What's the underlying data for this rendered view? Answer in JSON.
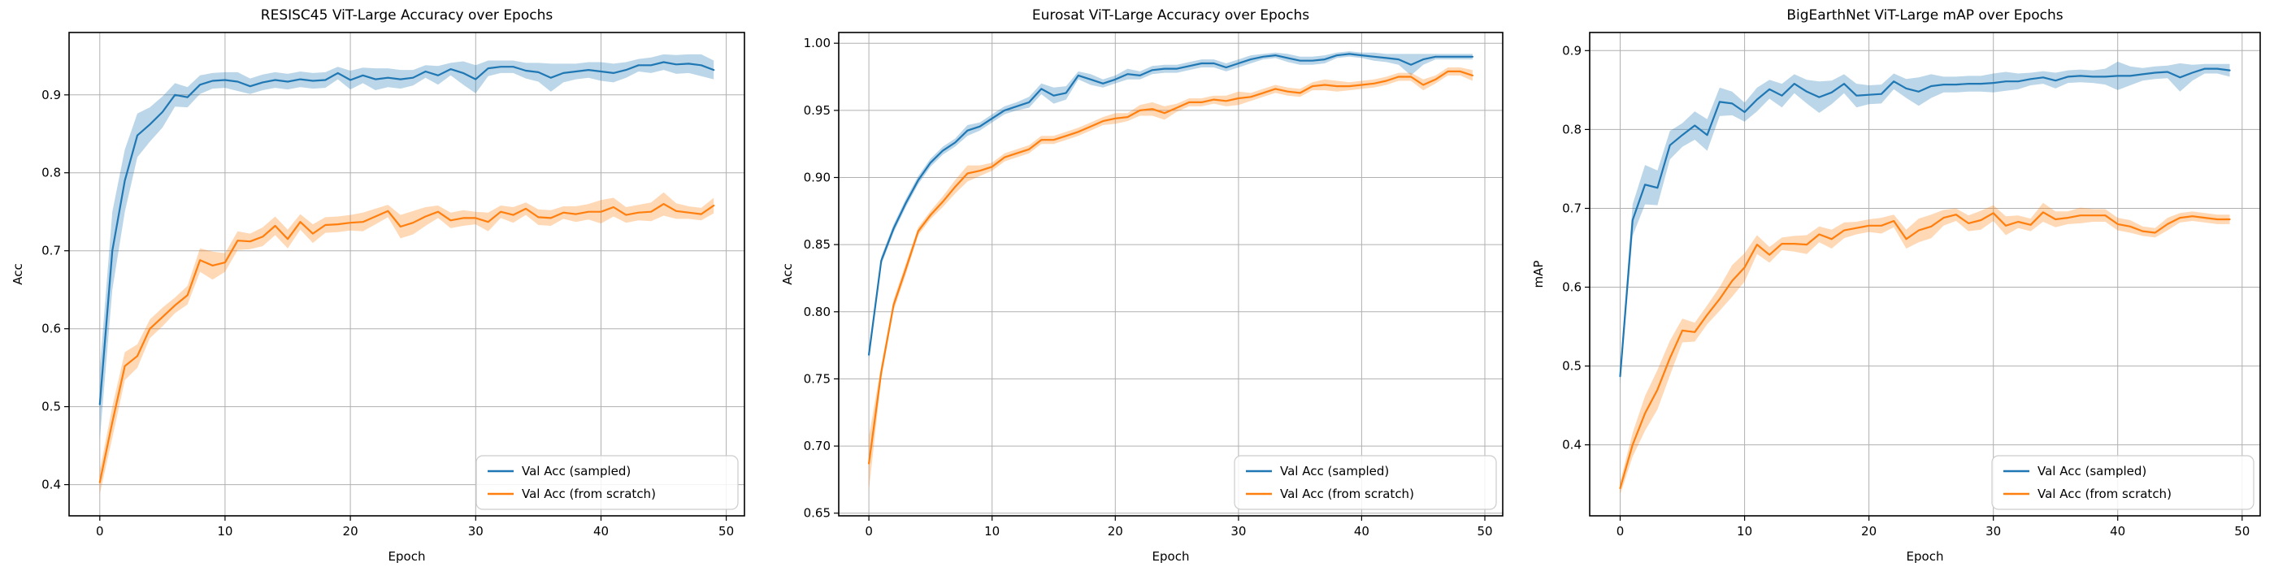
{
  "chart_data": [
    {
      "type": "line",
      "title": "RESISC45 ViT-Large Accuracy  over Epochs",
      "xlabel": "Epoch",
      "ylabel": "Acc",
      "grid": true,
      "legend_position": "lower right",
      "xlim": [
        -2.45,
        51.45
      ],
      "ylim": [
        0.36,
        0.98
      ],
      "xticks": [
        0,
        10,
        20,
        30,
        40,
        50
      ],
      "xtick_labels": [
        "0",
        "10",
        "20",
        "30",
        "40",
        "50"
      ],
      "yticks": [
        0.4,
        0.5,
        0.6,
        0.7,
        0.8,
        0.9
      ],
      "ytick_labels": [
        "0.4",
        "0.5",
        "0.6",
        "0.7",
        "0.8",
        "0.9"
      ],
      "x": [
        0,
        1,
        2,
        3,
        4,
        5,
        6,
        7,
        8,
        9,
        10,
        11,
        12,
        13,
        14,
        15,
        16,
        17,
        18,
        19,
        20,
        21,
        22,
        23,
        24,
        25,
        26,
        27,
        28,
        29,
        30,
        31,
        32,
        33,
        34,
        35,
        36,
        37,
        38,
        39,
        40,
        41,
        42,
        43,
        44,
        45,
        46,
        47,
        48,
        49
      ],
      "series": [
        {
          "name": "Val Acc (sampled)",
          "color": "#1f77b4",
          "values": [
            0.503,
            0.7,
            0.79,
            0.848,
            0.862,
            0.878,
            0.9,
            0.897,
            0.913,
            0.918,
            0.919,
            0.917,
            0.911,
            0.916,
            0.919,
            0.917,
            0.92,
            0.918,
            0.919,
            0.928,
            0.919,
            0.925,
            0.92,
            0.922,
            0.92,
            0.922,
            0.93,
            0.925,
            0.933,
            0.928,
            0.92,
            0.934,
            0.936,
            0.936,
            0.931,
            0.929,
            0.922,
            0.928,
            0.93,
            0.932,
            0.93,
            0.928,
            0.932,
            0.938,
            0.938,
            0.942,
            0.939,
            0.94,
            0.938,
            0.932
          ],
          "band": [
            0.045,
            0.05,
            0.04,
            0.028,
            0.022,
            0.02,
            0.015,
            0.013,
            0.012,
            0.01,
            0.01,
            0.012,
            0.01,
            0.01,
            0.01,
            0.01,
            0.01,
            0.01,
            0.01,
            0.008,
            0.012,
            0.01,
            0.014,
            0.012,
            0.012,
            0.01,
            0.008,
            0.012,
            0.008,
            0.015,
            0.018,
            0.01,
            0.008,
            0.008,
            0.01,
            0.012,
            0.018,
            0.012,
            0.01,
            0.01,
            0.012,
            0.012,
            0.01,
            0.008,
            0.01,
            0.01,
            0.012,
            0.012,
            0.014,
            0.012
          ]
        },
        {
          "name": "Val Acc (from scratch)",
          "color": "#ff7f0e",
          "values": [
            0.403,
            0.48,
            0.552,
            0.565,
            0.6,
            0.615,
            0.63,
            0.643,
            0.688,
            0.681,
            0.685,
            0.713,
            0.712,
            0.718,
            0.732,
            0.715,
            0.737,
            0.722,
            0.733,
            0.734,
            0.736,
            0.737,
            0.744,
            0.751,
            0.731,
            0.736,
            0.744,
            0.75,
            0.739,
            0.742,
            0.742,
            0.737,
            0.75,
            0.746,
            0.754,
            0.743,
            0.742,
            0.749,
            0.747,
            0.75,
            0.75,
            0.756,
            0.746,
            0.749,
            0.75,
            0.76,
            0.751,
            0.749,
            0.747,
            0.758
          ],
          "band": [
            0.015,
            0.02,
            0.018,
            0.015,
            0.012,
            0.012,
            0.01,
            0.012,
            0.015,
            0.018,
            0.012,
            0.012,
            0.01,
            0.012,
            0.012,
            0.012,
            0.01,
            0.012,
            0.01,
            0.01,
            0.01,
            0.012,
            0.01,
            0.008,
            0.015,
            0.015,
            0.012,
            0.008,
            0.01,
            0.01,
            0.008,
            0.012,
            0.008,
            0.01,
            0.008,
            0.01,
            0.01,
            0.008,
            0.01,
            0.01,
            0.015,
            0.012,
            0.01,
            0.01,
            0.012,
            0.015,
            0.01,
            0.008,
            0.008,
            0.01
          ]
        }
      ]
    },
    {
      "type": "line",
      "title": "Eurosat ViT-Large Accuracy over Epochs",
      "xlabel": "Epoch",
      "ylabel": "Acc",
      "grid": true,
      "legend_position": "lower right",
      "xlim": [
        -2.45,
        51.45
      ],
      "ylim": [
        0.648,
        1.008
      ],
      "xticks": [
        0,
        10,
        20,
        30,
        40,
        50
      ],
      "xtick_labels": [
        "0",
        "10",
        "20",
        "30",
        "40",
        "50"
      ],
      "yticks": [
        0.65,
        0.7,
        0.75,
        0.8,
        0.85,
        0.9,
        0.95,
        1.0
      ],
      "ytick_labels": [
        "0.65",
        "0.70",
        "0.75",
        "0.80",
        "0.85",
        "0.90",
        "0.95",
        "1.00"
      ],
      "x": [
        0,
        1,
        2,
        3,
        4,
        5,
        6,
        7,
        8,
        9,
        10,
        11,
        12,
        13,
        14,
        15,
        16,
        17,
        18,
        19,
        20,
        21,
        22,
        23,
        24,
        25,
        26,
        27,
        28,
        29,
        30,
        31,
        32,
        33,
        34,
        35,
        36,
        37,
        38,
        39,
        40,
        41,
        42,
        43,
        44,
        45,
        46,
        47,
        48,
        49
      ],
      "series": [
        {
          "name": "Val Acc (sampled)",
          "color": "#1f77b4",
          "values": [
            0.768,
            0.838,
            0.862,
            0.881,
            0.898,
            0.911,
            0.92,
            0.926,
            0.935,
            0.938,
            0.944,
            0.95,
            0.953,
            0.956,
            0.966,
            0.961,
            0.963,
            0.976,
            0.973,
            0.97,
            0.973,
            0.977,
            0.976,
            0.98,
            0.981,
            0.981,
            0.983,
            0.985,
            0.985,
            0.982,
            0.985,
            0.988,
            0.99,
            0.991,
            0.989,
            0.987,
            0.987,
            0.988,
            0.991,
            0.992,
            0.991,
            0.99,
            0.989,
            0.988,
            0.984,
            0.988,
            0.99,
            0.99,
            0.99,
            0.99
          ],
          "band": [
            0.004,
            0.003,
            0.003,
            0.003,
            0.003,
            0.003,
            0.003,
            0.003,
            0.004,
            0.003,
            0.003,
            0.003,
            0.003,
            0.004,
            0.004,
            0.006,
            0.005,
            0.003,
            0.004,
            0.003,
            0.003,
            0.004,
            0.003,
            0.003,
            0.003,
            0.003,
            0.003,
            0.003,
            0.003,
            0.003,
            0.003,
            0.003,
            0.002,
            0.002,
            0.003,
            0.003,
            0.003,
            0.003,
            0.002,
            0.002,
            0.002,
            0.003,
            0.003,
            0.004,
            0.008,
            0.004,
            0.002,
            0.002,
            0.002,
            0.002
          ]
        },
        {
          "name": "Val Acc (from scratch)",
          "color": "#ff7f0e",
          "values": [
            0.687,
            0.755,
            0.805,
            0.832,
            0.86,
            0.872,
            0.882,
            0.893,
            0.903,
            0.905,
            0.908,
            0.915,
            0.918,
            0.921,
            0.928,
            0.928,
            0.931,
            0.934,
            0.938,
            0.942,
            0.944,
            0.945,
            0.95,
            0.951,
            0.948,
            0.952,
            0.956,
            0.956,
            0.958,
            0.957,
            0.959,
            0.96,
            0.963,
            0.966,
            0.964,
            0.963,
            0.968,
            0.969,
            0.968,
            0.968,
            0.969,
            0.97,
            0.972,
            0.975,
            0.975,
            0.969,
            0.973,
            0.979,
            0.979,
            0.976
          ],
          "band": [
            0.02,
            0.005,
            0.004,
            0.004,
            0.003,
            0.003,
            0.004,
            0.005,
            0.006,
            0.004,
            0.003,
            0.003,
            0.003,
            0.003,
            0.003,
            0.003,
            0.003,
            0.003,
            0.003,
            0.003,
            0.004,
            0.003,
            0.004,
            0.005,
            0.005,
            0.003,
            0.003,
            0.003,
            0.003,
            0.004,
            0.005,
            0.003,
            0.003,
            0.003,
            0.003,
            0.003,
            0.003,
            0.004,
            0.004,
            0.003,
            0.003,
            0.003,
            0.003,
            0.003,
            0.003,
            0.004,
            0.003,
            0.003,
            0.003,
            0.004
          ]
        }
      ]
    },
    {
      "type": "line",
      "title": "BigEarthNet ViT-Large mAP over Epochs",
      "xlabel": "Epoch",
      "ylabel": "mAP",
      "grid": true,
      "legend_position": "lower right",
      "xlim": [
        -2.45,
        51.45
      ],
      "ylim": [
        0.31,
        0.923
      ],
      "xticks": [
        0,
        10,
        20,
        30,
        40,
        50
      ],
      "xtick_labels": [
        "0",
        "10",
        "20",
        "30",
        "40",
        "50"
      ],
      "yticks": [
        0.4,
        0.5,
        0.6,
        0.7,
        0.8,
        0.9
      ],
      "ytick_labels": [
        "0.4",
        "0.5",
        "0.6",
        "0.7",
        "0.8",
        "0.9"
      ],
      "x": [
        0,
        1,
        2,
        3,
        4,
        5,
        6,
        7,
        8,
        9,
        10,
        11,
        12,
        13,
        14,
        15,
        16,
        17,
        18,
        19,
        20,
        21,
        22,
        23,
        24,
        25,
        26,
        27,
        28,
        29,
        30,
        31,
        32,
        33,
        34,
        35,
        36,
        37,
        38,
        39,
        40,
        41,
        42,
        43,
        44,
        45,
        46,
        47,
        48,
        49
      ],
      "series": [
        {
          "name": "Val Acc (sampled)",
          "color": "#1f77b4",
          "values": [
            0.487,
            0.685,
            0.73,
            0.726,
            0.78,
            0.793,
            0.805,
            0.793,
            0.835,
            0.833,
            0.822,
            0.838,
            0.851,
            0.843,
            0.858,
            0.848,
            0.841,
            0.847,
            0.858,
            0.843,
            0.844,
            0.845,
            0.861,
            0.852,
            0.848,
            0.855,
            0.857,
            0.857,
            0.858,
            0.858,
            0.859,
            0.861,
            0.861,
            0.864,
            0.866,
            0.862,
            0.867,
            0.868,
            0.867,
            0.867,
            0.868,
            0.868,
            0.87,
            0.872,
            0.873,
            0.866,
            0.872,
            0.877,
            0.877,
            0.875
          ],
          "band": [
            0.01,
            0.02,
            0.025,
            0.022,
            0.018,
            0.015,
            0.018,
            0.02,
            0.018,
            0.015,
            0.012,
            0.015,
            0.012,
            0.015,
            0.012,
            0.015,
            0.02,
            0.015,
            0.012,
            0.015,
            0.012,
            0.012,
            0.01,
            0.012,
            0.018,
            0.015,
            0.01,
            0.01,
            0.01,
            0.01,
            0.012,
            0.012,
            0.01,
            0.008,
            0.008,
            0.01,
            0.008,
            0.008,
            0.008,
            0.01,
            0.018,
            0.012,
            0.008,
            0.008,
            0.008,
            0.018,
            0.01,
            0.006,
            0.006,
            0.008
          ]
        },
        {
          "name": "Val Acc (from scratch)",
          "color": "#ff7f0e",
          "values": [
            0.345,
            0.4,
            0.44,
            0.47,
            0.51,
            0.545,
            0.543,
            0.565,
            0.585,
            0.608,
            0.625,
            0.654,
            0.641,
            0.655,
            0.655,
            0.654,
            0.667,
            0.661,
            0.672,
            0.675,
            0.678,
            0.678,
            0.684,
            0.661,
            0.672,
            0.677,
            0.688,
            0.692,
            0.681,
            0.685,
            0.694,
            0.678,
            0.683,
            0.679,
            0.695,
            0.686,
            0.688,
            0.691,
            0.691,
            0.691,
            0.68,
            0.677,
            0.671,
            0.669,
            0.68,
            0.688,
            0.69,
            0.688,
            0.686,
            0.686
          ],
          "band": [
            0.008,
            0.015,
            0.022,
            0.025,
            0.022,
            0.015,
            0.012,
            0.012,
            0.015,
            0.02,
            0.018,
            0.012,
            0.01,
            0.008,
            0.01,
            0.012,
            0.01,
            0.012,
            0.01,
            0.008,
            0.008,
            0.01,
            0.008,
            0.012,
            0.015,
            0.015,
            0.01,
            0.008,
            0.01,
            0.012,
            0.01,
            0.012,
            0.008,
            0.008,
            0.012,
            0.01,
            0.008,
            0.01,
            0.008,
            0.008,
            0.008,
            0.008,
            0.006,
            0.006,
            0.008,
            0.006,
            0.006,
            0.006,
            0.006,
            0.006
          ]
        }
      ]
    }
  ]
}
